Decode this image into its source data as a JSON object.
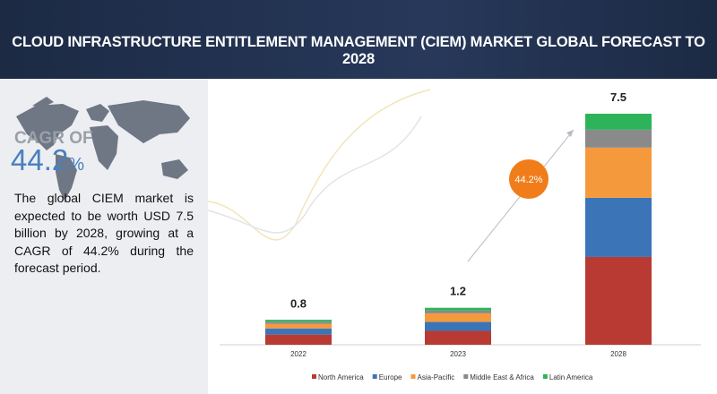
{
  "header": {
    "title": "CLOUD INFRASTRUCTURE ENTITLEMENT MANAGEMENT (CIEM) MARKET GLOBAL FORECAST TO 2028"
  },
  "cagr": {
    "label": "CAGR OF",
    "value": "44.2",
    "unit": "%"
  },
  "description": "The global CIEM market is expected to be worth USD 7.5 billion by 2028, growing at a CAGR of 44.2% during the forecast period.",
  "chart_data": {
    "type": "stacked-bar",
    "categories": [
      "2022",
      "2023",
      "2028"
    ],
    "totals": [
      0.8,
      1.2,
      7.5
    ],
    "annotation": "44.2%",
    "series": [
      {
        "name": "North America",
        "color": "#b93a32",
        "values": [
          0.33,
          0.45,
          2.85
        ]
      },
      {
        "name": "Europe",
        "color": "#3b75b8",
        "values": [
          0.2,
          0.29,
          1.92
        ]
      },
      {
        "name": "Asia-Pacific",
        "color": "#f5993d",
        "values": [
          0.15,
          0.28,
          1.63
        ]
      },
      {
        "name": "Middle East & Africa",
        "color": "#8a8a8a",
        "values": [
          0.07,
          0.09,
          0.58
        ]
      },
      {
        "name": "Latin America",
        "color": "#2db45a",
        "values": [
          0.06,
          0.09,
          0.52
        ]
      }
    ]
  }
}
